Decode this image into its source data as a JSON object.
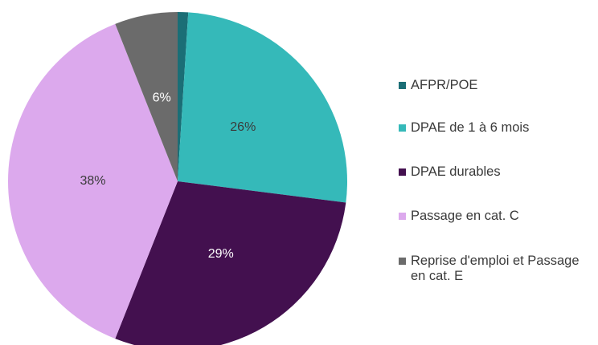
{
  "chart_data": {
    "type": "pie",
    "categories": [
      "AFPR/POE",
      "DPAE de 1 à 6 mois",
      "DPAE durables",
      "Passage en cat. C",
      "Reprise d'emploi et Passage en cat. E"
    ],
    "values": [
      1,
      26,
      29,
      38,
      6
    ],
    "value_labels": [
      null,
      "26%",
      "29%",
      "38%",
      "6%"
    ],
    "colors": [
      "#1b6e76",
      "#35b9b9",
      "#43104f",
      "#dca9ed",
      "#6b6b6b"
    ],
    "legend": "right"
  }
}
